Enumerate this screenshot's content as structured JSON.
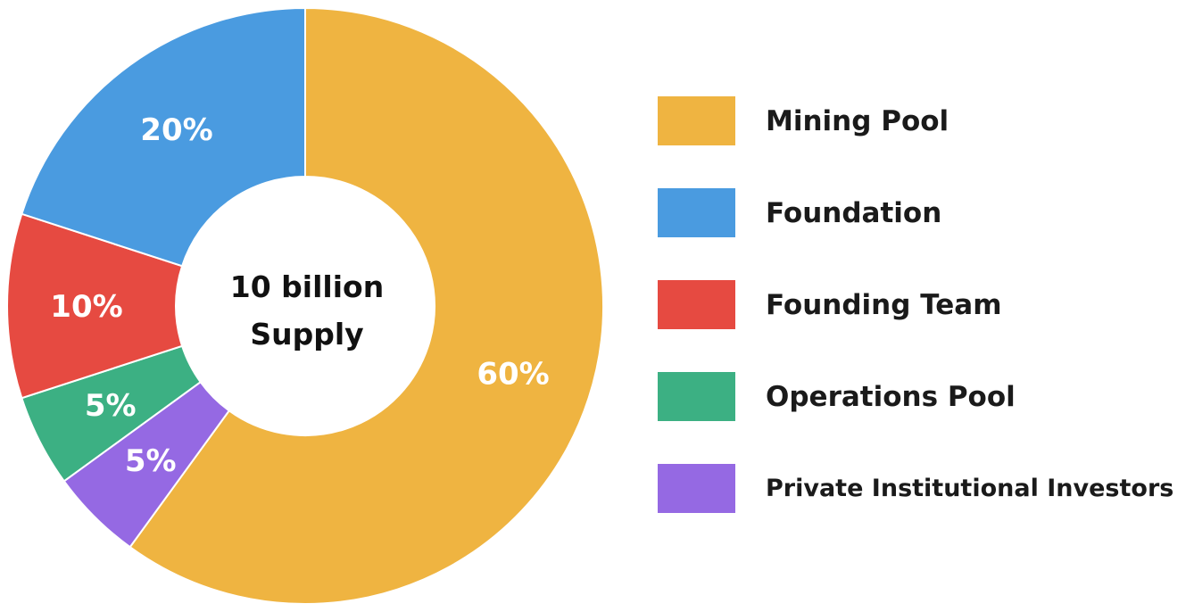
{
  "chart_data": {
    "type": "pie",
    "variant": "donut",
    "center_text": [
      "10 billion",
      "Supply"
    ],
    "categories": [
      "Mining Pool",
      "Foundation",
      "Founding Team",
      "Operations Pool",
      "Private Institutional Investors"
    ],
    "values": [
      60,
      20,
      10,
      5,
      5
    ],
    "data_labels": [
      "60%",
      "20%",
      "10%",
      "5%",
      "5%"
    ],
    "colors": [
      "#EFB441",
      "#4A9BE0",
      "#E64A41",
      "#3CB083",
      "#9569E3"
    ],
    "slice_order_clockwise_from_top": [
      "Mining Pool",
      "Private Institutional Investors",
      "Operations Pool",
      "Founding Team",
      "Foundation"
    ],
    "legend_placement": "right"
  }
}
